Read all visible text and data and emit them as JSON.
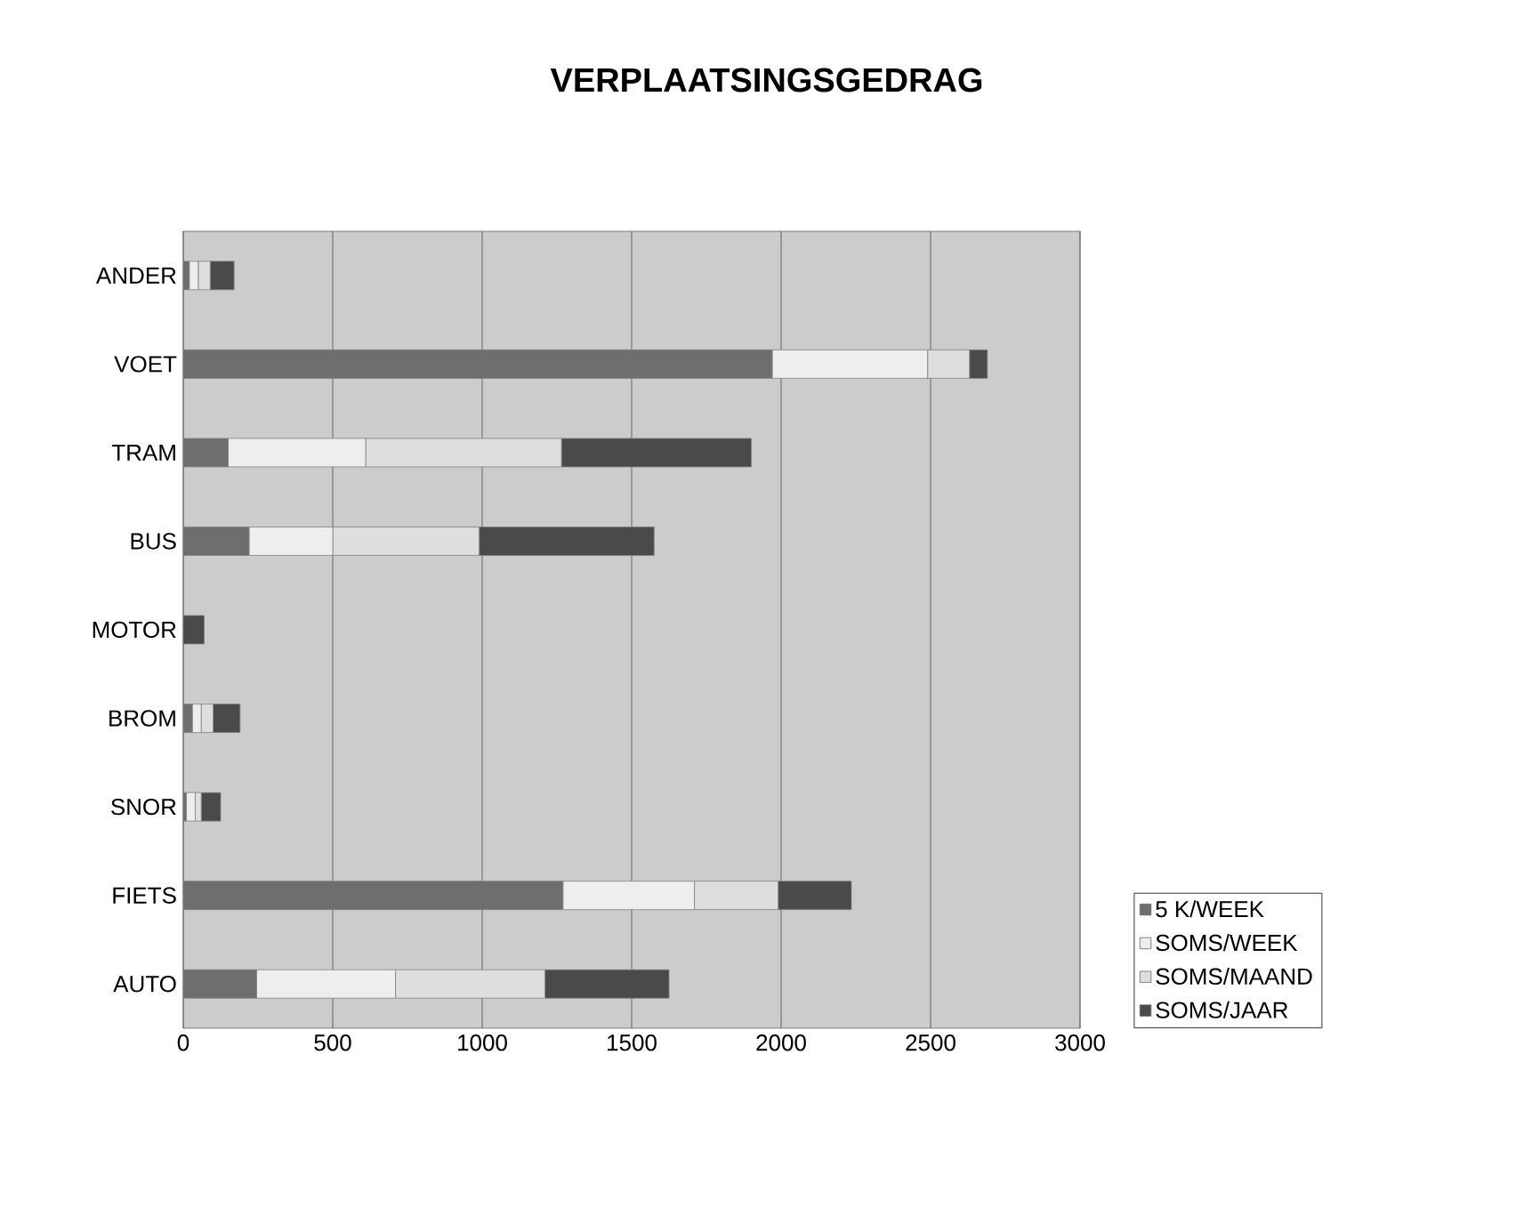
{
  "chart_data": {
    "type": "bar",
    "orientation": "horizontal",
    "stacked": true,
    "title": "VERPLAATSINGSGEDRAG",
    "categories": [
      "ANDER",
      "VOET",
      "TRAM",
      "BUS",
      "MOTOR",
      "BROM",
      "SNOR",
      "FIETS",
      "AUTO"
    ],
    "series": [
      {
        "name": "5 K/WEEK",
        "color": "#6e6e6e",
        "values": [
          20,
          1970,
          150,
          220,
          0,
          30,
          10,
          1270,
          245
        ]
      },
      {
        "name": "SOMS/WEEK",
        "color": "#eeeeee",
        "values": [
          30,
          520,
          460,
          280,
          0,
          30,
          30,
          440,
          465
        ]
      },
      {
        "name": "SOMS/MAAND",
        "color": "#dedede",
        "values": [
          40,
          140,
          655,
          490,
          0,
          40,
          20,
          280,
          500
        ]
      },
      {
        "name": "SOMS/JAAR",
        "color": "#4a4a4a",
        "values": [
          80,
          60,
          635,
          585,
          70,
          90,
          65,
          245,
          415
        ]
      }
    ],
    "xlim": [
      0,
      3000
    ],
    "xticks": [
      0,
      500,
      1000,
      1500,
      2000,
      2500,
      3000
    ],
    "grid": "x",
    "legend": "right"
  }
}
